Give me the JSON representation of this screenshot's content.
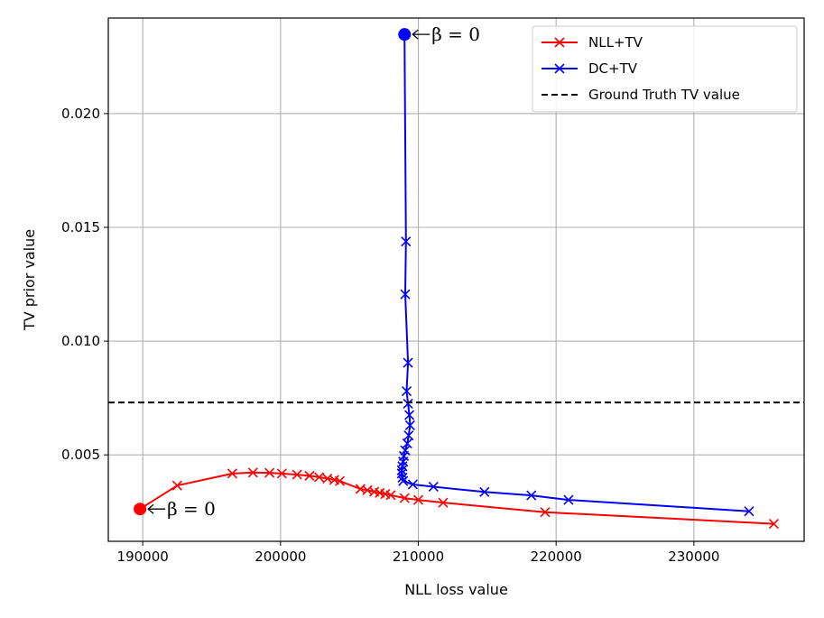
{
  "chart_data": {
    "type": "line",
    "xlabel": "NLL loss value",
    "ylabel": "TV prior value",
    "xlim": [
      187500,
      238000
    ],
    "ylim": [
      0.0012,
      0.0242
    ],
    "xticks": [
      190000,
      200000,
      210000,
      220000,
      230000
    ],
    "yticks": [
      0.005,
      0.01,
      0.015,
      0.02
    ],
    "xtick_labels": [
      "190000",
      "200000",
      "210000",
      "220000",
      "230000"
    ],
    "ytick_labels": [
      "0.005",
      "0.010",
      "0.015",
      "0.020"
    ],
    "grid": true,
    "legend_position": "top-right",
    "series": [
      {
        "name": "NLL+TV",
        "color": "#ff0000",
        "marker": "x",
        "points": [
          [
            189800,
            0.00262
          ],
          [
            192500,
            0.00365
          ],
          [
            196500,
            0.00418
          ],
          [
            198000,
            0.00422
          ],
          [
            199200,
            0.00421
          ],
          [
            200100,
            0.00418
          ],
          [
            201200,
            0.00413
          ],
          [
            202100,
            0.00408
          ],
          [
            202800,
            0.00402
          ],
          [
            203400,
            0.00396
          ],
          [
            203900,
            0.0039
          ],
          [
            204300,
            0.00385
          ],
          [
            205800,
            0.0035
          ],
          [
            206300,
            0.00345
          ],
          [
            206800,
            0.00338
          ],
          [
            207200,
            0.00333
          ],
          [
            207600,
            0.00328
          ],
          [
            208000,
            0.00323
          ],
          [
            209000,
            0.0031
          ],
          [
            210000,
            0.00302
          ],
          [
            211800,
            0.0029
          ],
          [
            219200,
            0.00248
          ],
          [
            235800,
            0.00197
          ]
        ]
      },
      {
        "name": "DC+TV",
        "color": "#0000ff",
        "marker": "x",
        "points": [
          [
            209000,
            0.02348
          ],
          [
            209100,
            0.01438
          ],
          [
            209050,
            0.01206
          ],
          [
            209250,
            0.00905
          ],
          [
            209150,
            0.0078
          ],
          [
            209250,
            0.00725
          ],
          [
            209350,
            0.00675
          ],
          [
            209400,
            0.0063
          ],
          [
            209300,
            0.00585
          ],
          [
            209200,
            0.0055
          ],
          [
            209050,
            0.0052
          ],
          [
            208950,
            0.00495
          ],
          [
            208900,
            0.0047
          ],
          [
            208850,
            0.0045
          ],
          [
            208800,
            0.00432
          ],
          [
            208800,
            0.00418
          ],
          [
            208850,
            0.004
          ],
          [
            208900,
            0.00385
          ],
          [
            209600,
            0.0037
          ],
          [
            211100,
            0.0036
          ],
          [
            214800,
            0.00337
          ],
          [
            218200,
            0.00322
          ],
          [
            220900,
            0.00302
          ],
          [
            234000,
            0.00252
          ]
        ]
      },
      {
        "name": "Ground Truth TV value",
        "color": "#000000",
        "style": "dashed",
        "y": 0.0073
      }
    ],
    "annotations": [
      {
        "text": "β = 0",
        "x": 209000,
        "y": 0.02348,
        "color": "#0000ff"
      },
      {
        "text": "β = 0",
        "x": 189800,
        "y": 0.00262,
        "color": "#ff0000"
      }
    ]
  }
}
